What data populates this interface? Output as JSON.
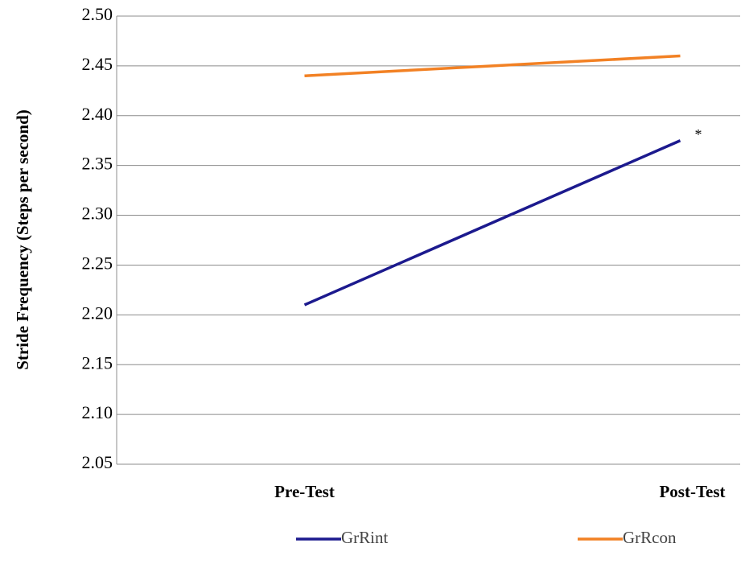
{
  "chart_data": {
    "type": "line",
    "y_label": "Stride Frequency (Steps per second)",
    "categories": [
      "Pre-Test",
      "Post-Test"
    ],
    "series": [
      {
        "name": "GrRint",
        "color": "#1c1a8e",
        "values": [
          2.21,
          2.375
        ]
      },
      {
        "name": "GrRcon",
        "color": "#f28124",
        "values": [
          2.44,
          2.46
        ]
      }
    ],
    "annotation": "*",
    "ylim": [
      2.05,
      2.5
    ],
    "yticks": [
      2.05,
      {
        "value": 2.1,
        "label": "2.10"
      },
      2.15,
      {
        "value": 2.2,
        "label": "2.20"
      },
      2.25,
      {
        "value": 2.3,
        "label": "2.30"
      },
      2.35,
      {
        "value": 2.4,
        "label": "2.40"
      },
      2.45,
      {
        "value": 2.5,
        "label": "2.50"
      }
    ],
    "grid": true
  }
}
